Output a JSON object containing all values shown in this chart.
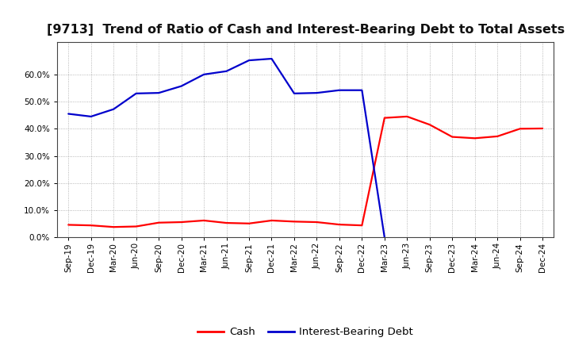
{
  "title": "[9713]  Trend of Ratio of Cash and Interest-Bearing Debt to Total Assets",
  "ylim": [
    0.0,
    0.72
  ],
  "yticks": [
    0.0,
    0.1,
    0.2,
    0.3,
    0.4,
    0.5,
    0.6
  ],
  "x_labels": [
    "Sep-19",
    "Dec-19",
    "Mar-20",
    "Jun-20",
    "Sep-20",
    "Dec-20",
    "Mar-21",
    "Jun-21",
    "Sep-21",
    "Dec-21",
    "Mar-22",
    "Jun-22",
    "Sep-22",
    "Dec-22",
    "Mar-23",
    "Jun-23",
    "Sep-23",
    "Dec-23",
    "Mar-24",
    "Jun-24",
    "Sep-24",
    "Dec-24"
  ],
  "cash": [
    0.046,
    0.044,
    0.038,
    0.04,
    0.054,
    0.056,
    0.062,
    0.053,
    0.051,
    0.062,
    0.058,
    0.056,
    0.047,
    0.044,
    0.44,
    0.445,
    0.415,
    0.37,
    0.365,
    0.372,
    0.4,
    0.401
  ],
  "ibd": [
    0.455,
    0.445,
    0.472,
    0.53,
    0.532,
    0.557,
    0.6,
    0.612,
    0.652,
    0.658,
    0.53,
    0.532,
    0.542,
    0.542,
    0.0,
    null,
    null,
    null,
    null,
    null,
    null,
    null
  ],
  "cash_color": "#ff0000",
  "ibd_color": "#0000cc",
  "bg_color": "#ffffff",
  "grid_color": "#999999",
  "title_color": "#111111",
  "title_fontsize": 11.5,
  "legend_fontsize": 9.5,
  "tick_fontsize": 7.5
}
